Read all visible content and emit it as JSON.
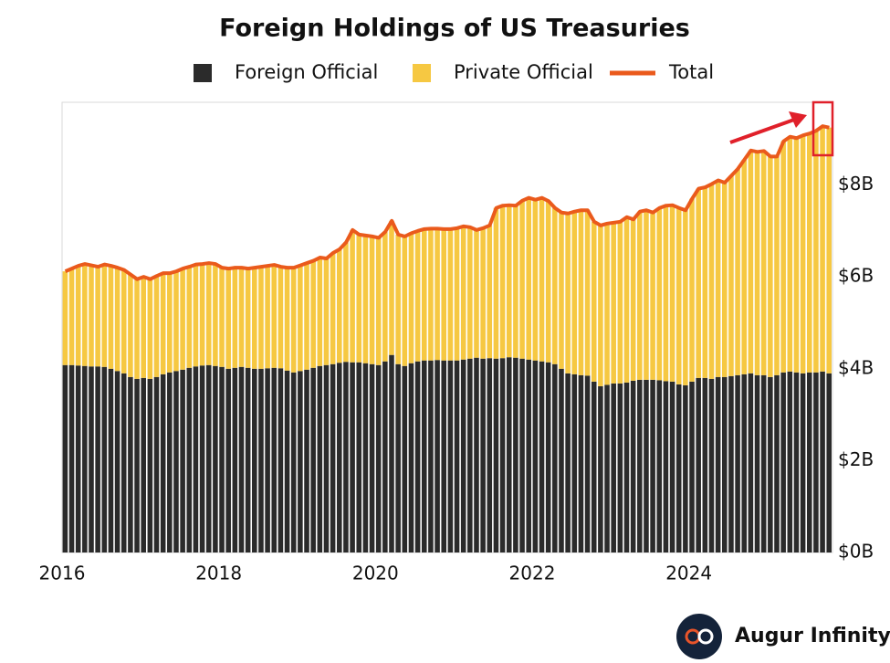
{
  "chart_data": {
    "type": "bar",
    "stacked": true,
    "title": "Foreign Holdings of US Treasuries",
    "categories": [
      "2016",
      null,
      null,
      null,
      null,
      null,
      null,
      null,
      null,
      null,
      null,
      null,
      null,
      null,
      null,
      null,
      null,
      null,
      null,
      null,
      null,
      null,
      null,
      null,
      "2018",
      null,
      null,
      null,
      null,
      null,
      null,
      null,
      null,
      null,
      null,
      null,
      null,
      null,
      null,
      null,
      null,
      null,
      null,
      null,
      null,
      null,
      null,
      null,
      "2020",
      null,
      null,
      null,
      null,
      null,
      null,
      null,
      null,
      null,
      null,
      null,
      null,
      null,
      null,
      null,
      null,
      null,
      null,
      null,
      null,
      null,
      null,
      null,
      "2022",
      null,
      null,
      null,
      null,
      null,
      null,
      null,
      null,
      null,
      null,
      null,
      null,
      null,
      null,
      null,
      null,
      null,
      null,
      null,
      null,
      null,
      null,
      null,
      "2024",
      null,
      null,
      null,
      null,
      null,
      null,
      null,
      null,
      null,
      null,
      null,
      null,
      null,
      null,
      null,
      null,
      null,
      null,
      null,
      null,
      null
    ],
    "series": [
      {
        "name": "Foreign Official",
        "color": "#2b2b2b",
        "values": [
          4.08,
          4.08,
          4.07,
          4.06,
          4.05,
          4.05,
          4.04,
          4.0,
          3.95,
          3.9,
          3.82,
          3.78,
          3.8,
          3.78,
          3.82,
          3.88,
          3.92,
          3.95,
          3.98,
          4.02,
          4.05,
          4.07,
          4.08,
          4.06,
          4.04,
          4.0,
          4.02,
          4.04,
          4.02,
          4.0,
          4.0,
          4.01,
          4.02,
          4.01,
          3.96,
          3.92,
          3.95,
          3.98,
          4.02,
          4.06,
          4.08,
          4.1,
          4.13,
          4.15,
          4.14,
          4.14,
          4.12,
          4.1,
          4.08,
          4.16,
          4.3,
          4.1,
          4.06,
          4.12,
          4.16,
          4.18,
          4.18,
          4.19,
          4.18,
          4.18,
          4.18,
          4.2,
          4.22,
          4.24,
          4.22,
          4.23,
          4.22,
          4.23,
          4.25,
          4.24,
          4.22,
          4.2,
          4.18,
          4.16,
          4.14,
          4.1,
          4.0,
          3.9,
          3.88,
          3.86,
          3.85,
          3.72,
          3.62,
          3.65,
          3.68,
          3.68,
          3.7,
          3.74,
          3.76,
          3.76,
          3.76,
          3.75,
          3.73,
          3.72,
          3.66,
          3.64,
          3.72,
          3.8,
          3.8,
          3.78,
          3.82,
          3.82,
          3.84,
          3.86,
          3.88,
          3.9,
          3.86,
          3.86,
          3.82,
          3.86,
          3.92,
          3.94,
          3.92,
          3.9,
          3.92,
          3.92,
          3.94,
          3.9
        ]
      },
      {
        "name": "Private Official",
        "color": "#f6c842",
        "values": [
          2.04,
          2.1,
          2.17,
          2.22,
          2.2,
          2.17,
          2.23,
          2.24,
          2.25,
          2.25,
          2.23,
          2.17,
          2.2,
          2.17,
          2.2,
          2.2,
          2.16,
          2.17,
          2.2,
          2.2,
          2.22,
          2.21,
          2.22,
          2.22,
          2.16,
          2.18,
          2.18,
          2.16,
          2.16,
          2.2,
          2.22,
          2.23,
          2.24,
          2.21,
          2.24,
          2.28,
          2.3,
          2.32,
          2.33,
          2.36,
          2.32,
          2.42,
          2.47,
          2.6,
          2.88,
          2.78,
          2.78,
          2.78,
          2.77,
          2.82,
          2.92,
          2.82,
          2.82,
          2.83,
          2.84,
          2.86,
          2.87,
          2.86,
          2.86,
          2.86,
          2.88,
          2.9,
          2.86,
          2.78,
          2.84,
          2.89,
          3.28,
          3.32,
          3.31,
          3.31,
          3.44,
          3.52,
          3.5,
          3.56,
          3.51,
          3.4,
          3.4,
          3.48,
          3.54,
          3.59,
          3.6,
          3.48,
          3.5,
          3.51,
          3.5,
          3.52,
          3.6,
          3.51,
          3.66,
          3.69,
          3.64,
          3.75,
          3.82,
          3.84,
          3.84,
          3.81,
          3.98,
          4.12,
          4.15,
          4.24,
          4.28,
          4.23,
          4.36,
          4.49,
          4.67,
          4.85,
          4.86,
          4.88,
          4.8,
          4.76,
          5.03,
          5.11,
          5.1,
          5.18,
          5.2,
          5.26,
          5.34,
          5.35
        ]
      },
      {
        "name": "Total",
        "color": "#ea5a1c",
        "kind": "line",
        "values": [
          6.12,
          6.18,
          6.24,
          6.28,
          6.25,
          6.22,
          6.27,
          6.24,
          6.2,
          6.15,
          6.05,
          5.95,
          6.0,
          5.95,
          6.02,
          6.08,
          6.08,
          6.12,
          6.18,
          6.22,
          6.27,
          6.28,
          6.3,
          6.28,
          6.2,
          6.18,
          6.2,
          6.2,
          6.18,
          6.2,
          6.22,
          6.24,
          6.26,
          6.22,
          6.2,
          6.2,
          6.25,
          6.3,
          6.35,
          6.42,
          6.4,
          6.52,
          6.6,
          6.75,
          7.02,
          6.92,
          6.9,
          6.88,
          6.85,
          6.98,
          7.22,
          6.92,
          6.88,
          6.95,
          7.0,
          7.04,
          7.05,
          7.05,
          7.04,
          7.04,
          7.06,
          7.1,
          7.08,
          7.02,
          7.06,
          7.12,
          7.5,
          7.55,
          7.56,
          7.55,
          7.66,
          7.72,
          7.68,
          7.72,
          7.65,
          7.5,
          7.4,
          7.38,
          7.42,
          7.45,
          7.45,
          7.2,
          7.12,
          7.16,
          7.18,
          7.2,
          7.3,
          7.25,
          7.42,
          7.45,
          7.4,
          7.5,
          7.55,
          7.56,
          7.5,
          7.45,
          7.7,
          7.92,
          7.95,
          8.02,
          8.1,
          8.05,
          8.2,
          8.35,
          8.55,
          8.75,
          8.72,
          8.74,
          8.62,
          8.62,
          8.95,
          9.05,
          9.02,
          9.08,
          9.12,
          9.18,
          9.28,
          9.25
        ]
      }
    ],
    "ylim": [
      0,
      9.8
    ],
    "yticks": [
      {
        "value": 0,
        "label": "$0B"
      },
      {
        "value": 2,
        "label": "$2B"
      },
      {
        "value": 4,
        "label": "$4B"
      },
      {
        "value": 6,
        "label": "$6B"
      },
      {
        "value": 8,
        "label": "$8B"
      }
    ],
    "grid": false,
    "legend": "top"
  },
  "brand": "Augur Infinity"
}
